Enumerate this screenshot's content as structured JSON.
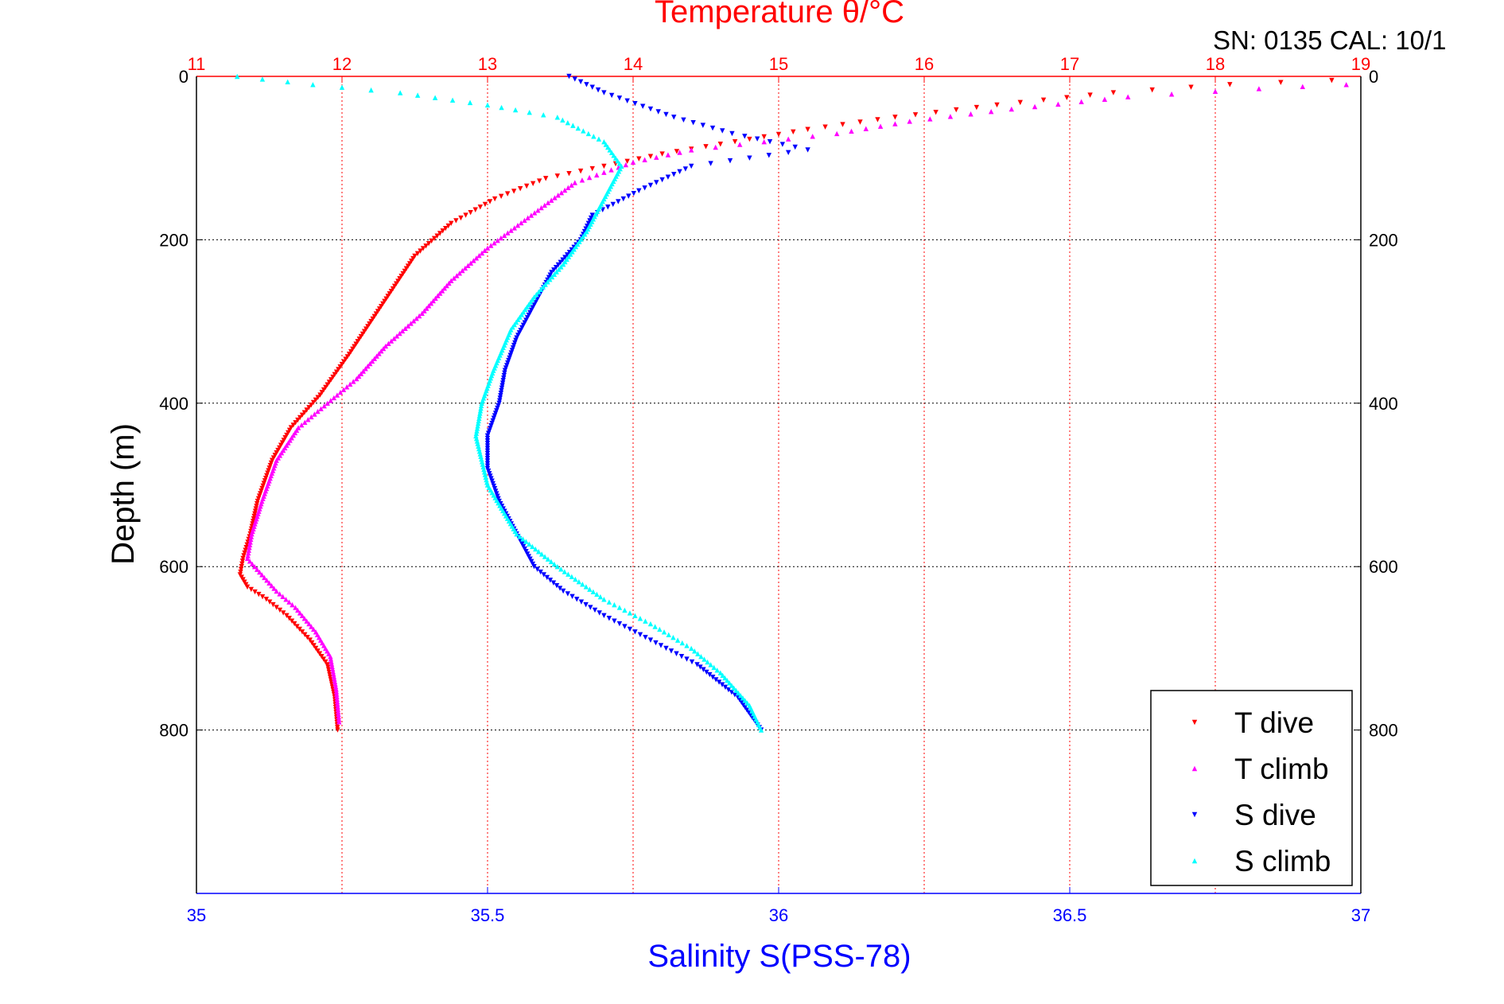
{
  "header": {
    "serial_text": "SN: 0135  CAL: 10/1"
  },
  "chart_data": {
    "type": "scatter",
    "title": "Temperature θ/°C",
    "xlabel": "Salinity S(PSS-78)",
    "ylabel": "Depth (m)",
    "xlim_temperature": [
      11,
      19
    ],
    "xlim_salinity": [
      35,
      37
    ],
    "ylim": [
      0,
      1000
    ],
    "y_inverted": true,
    "grid": true,
    "legend_position": "bottom-right",
    "temperature_ticks": [
      "11",
      "12",
      "13",
      "14",
      "15",
      "16",
      "17",
      "18",
      "19"
    ],
    "salinity_ticks": [
      "35",
      "35.5",
      "36",
      "36.5",
      "37"
    ],
    "depth_ticks": [
      "0",
      "200",
      "400",
      "600",
      "800"
    ],
    "colors": {
      "temperature_axis": "#ff0000",
      "salinity_axis": "#0000ff"
    },
    "series": [
      {
        "name": "T dive",
        "axis": "temperature",
        "marker": "triangle-down",
        "color": "#ff0000",
        "x": [
          18.8,
          18.1,
          17.3,
          16.5,
          15.8,
          15.2,
          14.7,
          14.2,
          13.8,
          13.4,
          13.05,
          12.75,
          12.5,
          12.35,
          12.2,
          12.05,
          11.85,
          11.65,
          11.52,
          11.42,
          11.37,
          11.32,
          11.3,
          11.35,
          11.48,
          11.62,
          11.78,
          11.9,
          11.95,
          11.97
        ],
        "y": [
          5,
          10,
          20,
          35,
          50,
          65,
          80,
          95,
          110,
          125,
          150,
          180,
          220,
          260,
          300,
          340,
          390,
          430,
          470,
          520,
          560,
          590,
          610,
          625,
          640,
          660,
          690,
          720,
          760,
          800
        ]
      },
      {
        "name": "T climb",
        "axis": "temperature",
        "marker": "triangle-up",
        "color": "#ff00ff",
        "x": [
          18.9,
          18.3,
          17.4,
          16.6,
          15.9,
          15.4,
          14.9,
          14.4,
          14.0,
          13.6,
          13.3,
          13.0,
          12.75,
          12.55,
          12.3,
          12.1,
          11.9,
          11.7,
          11.55,
          11.45,
          11.38,
          11.35,
          11.45,
          11.55,
          11.68,
          11.82,
          11.92,
          11.96,
          11.98
        ],
        "y": [
          10,
          15,
          25,
          40,
          55,
          70,
          80,
          90,
          105,
          130,
          170,
          210,
          250,
          290,
          330,
          370,
          400,
          430,
          470,
          520,
          560,
          590,
          610,
          630,
          650,
          680,
          710,
          750,
          790
        ]
      },
      {
        "name": "S dive",
        "axis": "salinity",
        "marker": "triangle-down",
        "color": "#0000ff",
        "x": [
          35.64,
          35.7,
          35.82,
          35.92,
          36.05,
          35.85,
          35.76,
          35.68,
          35.66,
          35.61,
          35.58,
          35.55,
          35.53,
          35.52,
          35.5,
          35.5,
          35.52,
          35.55,
          35.58,
          35.63,
          35.7,
          35.78,
          35.86,
          35.93,
          35.97
        ],
        "y": [
          0,
          20,
          50,
          70,
          90,
          110,
          140,
          170,
          200,
          240,
          280,
          320,
          360,
          400,
          440,
          480,
          520,
          560,
          600,
          630,
          660,
          690,
          720,
          760,
          800
        ]
      },
      {
        "name": "S climb",
        "axis": "salinity",
        "marker": "triangle-up",
        "color": "#00ffff",
        "x": [
          35.07,
          35.2,
          35.35,
          35.5,
          35.62,
          35.7,
          35.73,
          35.7,
          35.67,
          35.63,
          35.58,
          35.54,
          35.51,
          35.49,
          35.48,
          35.5,
          35.55,
          35.62,
          35.7,
          35.78,
          35.85,
          35.9,
          35.95,
          35.97
        ],
        "y": [
          0,
          10,
          20,
          35,
          50,
          80,
          110,
          150,
          190,
          230,
          270,
          310,
          360,
          400,
          440,
          500,
          560,
          600,
          640,
          670,
          700,
          730,
          770,
          800
        ]
      }
    ]
  }
}
